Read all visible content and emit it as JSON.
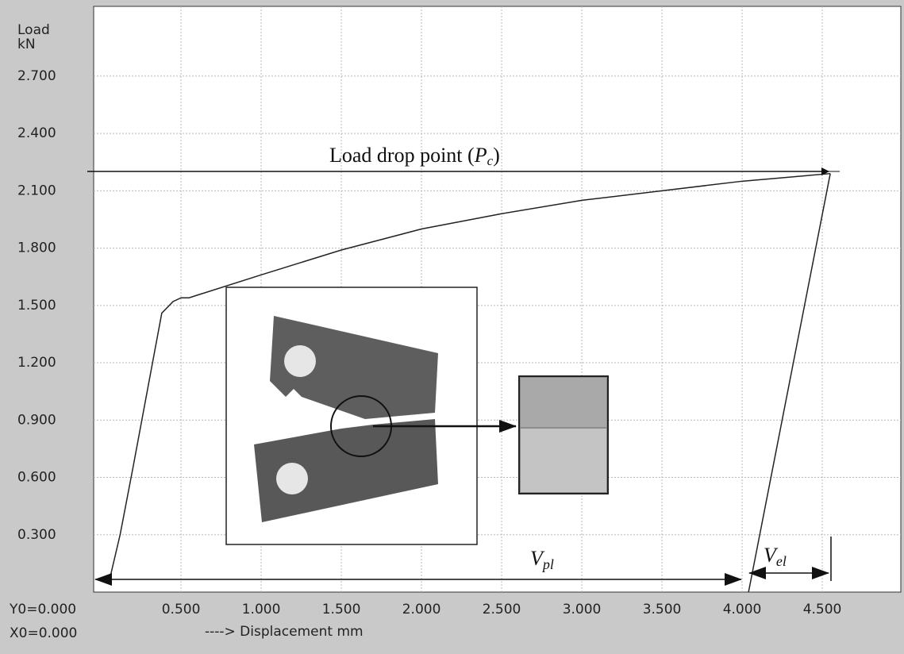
{
  "chart_data": {
    "type": "line",
    "y_label_top": "Load",
    "y_label_unit": "kN",
    "x_label": "----> Displacement mm",
    "origin_y": "Y0=0.000",
    "origin_x": "X0=0.000",
    "annotations": {
      "load_drop": {
        "text": "Load drop point (",
        "symbol": "P",
        "sub": "c",
        "close": ")"
      },
      "v_pl": {
        "symbol": "V",
        "sub": "pl"
      },
      "v_el": {
        "symbol": "V",
        "sub": "el"
      }
    },
    "series": [
      {
        "color": "#222222",
        "x": [
          0.05,
          0.12,
          0.2,
          0.3,
          0.38,
          0.45,
          0.5,
          0.55,
          1.0,
          1.5,
          2.0,
          2.5,
          3.0,
          3.5,
          4.0,
          4.55
        ],
        "values": [
          0.05,
          0.3,
          0.65,
          1.1,
          1.46,
          1.52,
          1.54,
          1.54,
          1.66,
          1.79,
          1.9,
          1.98,
          2.05,
          2.1,
          2.15,
          2.19
        ]
      },
      {
        "color": "#222222",
        "x": [
          4.55,
          4.04
        ],
        "values": [
          2.19,
          0.0
        ]
      }
    ],
    "xlim": [
      -0.045,
      4.99
    ],
    "ylim": [
      0,
      3.065
    ],
    "xticks": [
      {
        "value": 0.5,
        "label": "0.500"
      },
      {
        "value": 1.0,
        "label": "1.000"
      },
      {
        "value": 1.5,
        "label": "1.500"
      },
      {
        "value": 2.0,
        "label": "2.000"
      },
      {
        "value": 2.5,
        "label": "2.500"
      },
      {
        "value": 3.0,
        "label": "3.000"
      },
      {
        "value": 3.5,
        "label": "3.500"
      },
      {
        "value": 4.0,
        "label": "4.000"
      },
      {
        "value": 4.5,
        "label": "4.500"
      }
    ],
    "yticks": [
      {
        "value": 0.3,
        "label": "0.300"
      },
      {
        "value": 0.6,
        "label": "0.600"
      },
      {
        "value": 0.9,
        "label": "0.900"
      },
      {
        "value": 1.2,
        "label": "1.200"
      },
      {
        "value": 1.5,
        "label": "1.500"
      },
      {
        "value": 1.8,
        "label": "1.800"
      },
      {
        "value": 2.1,
        "label": "2.100"
      },
      {
        "value": 2.4,
        "label": "2.400"
      },
      {
        "value": 2.7,
        "label": "2.700"
      }
    ],
    "grid": true
  }
}
